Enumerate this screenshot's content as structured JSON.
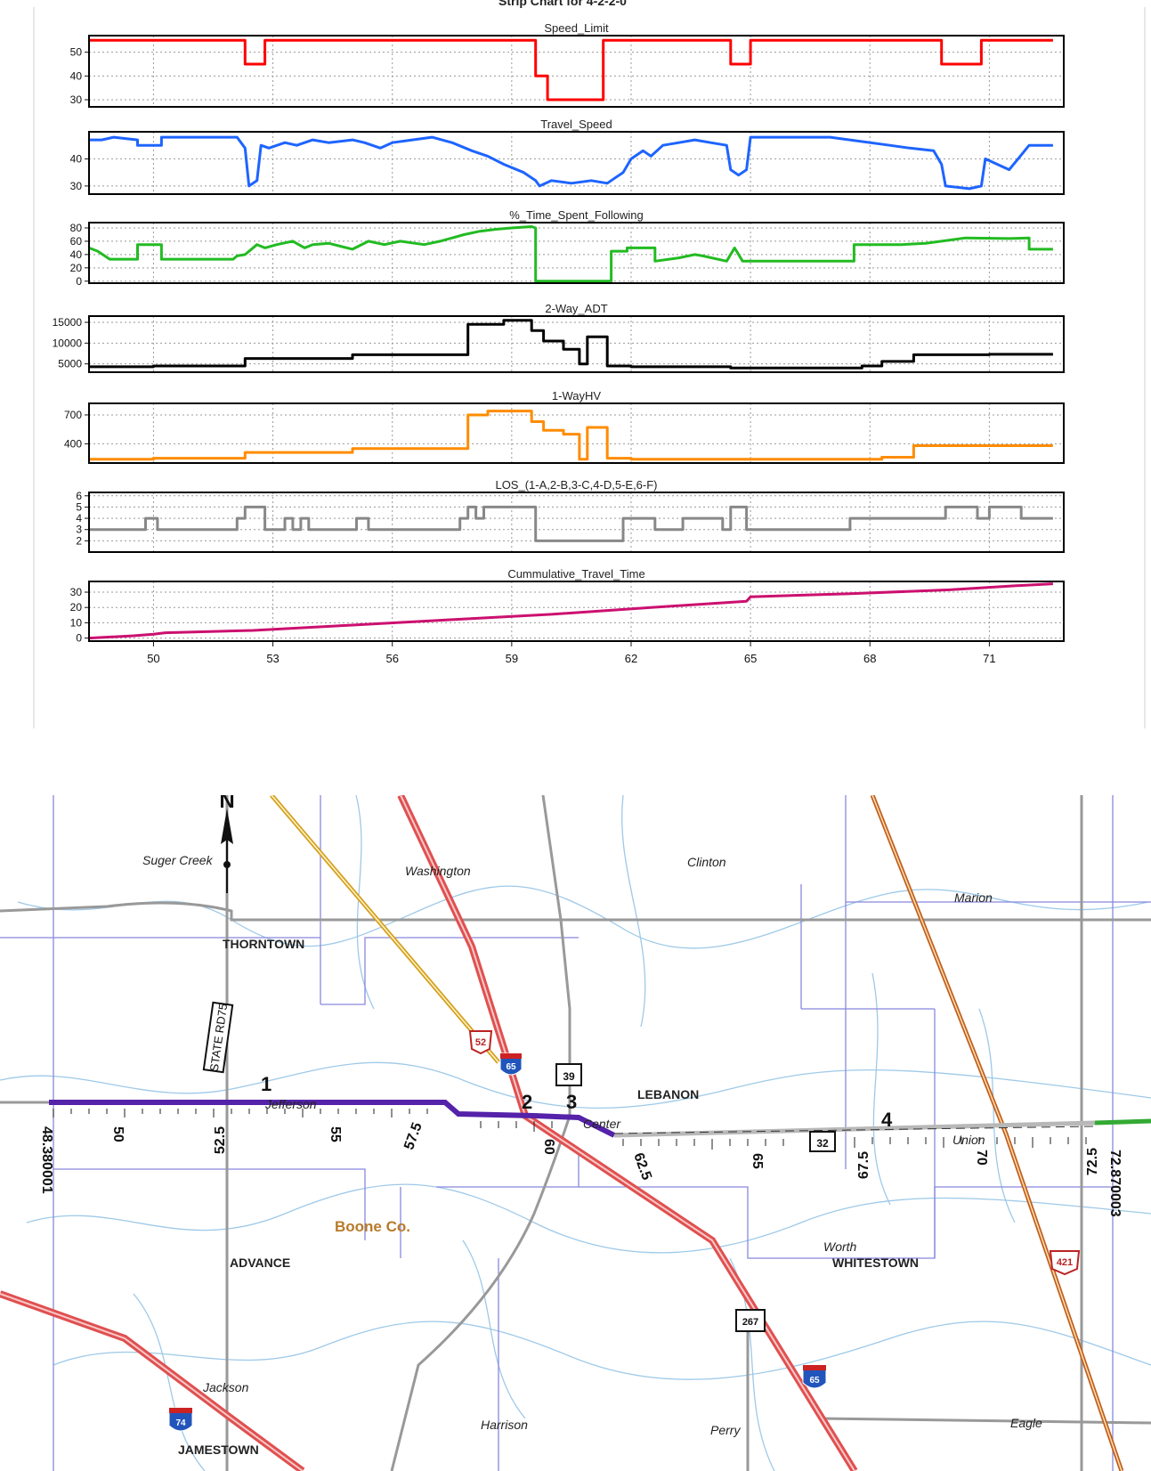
{
  "strip_chart": {
    "header_title": "Strip Chart for 4-2-2-0",
    "x_ticks": [
      50,
      53,
      56,
      59,
      62,
      65,
      68,
      71
    ]
  },
  "chart_data": [
    {
      "type": "line",
      "title": "Speed_Limit",
      "xlim": [
        48.38,
        72.87
      ],
      "ylim": [
        27,
        57
      ],
      "yticks": [
        30,
        40,
        50
      ],
      "color": "#ff0000",
      "x": [
        48.38,
        52.3,
        52.3,
        52.8,
        52.8,
        59.6,
        59.6,
        59.9,
        59.9,
        61.3,
        61.3,
        64.5,
        64.5,
        65.0,
        65.0,
        69.8,
        69.8,
        70.8,
        70.8,
        72.6
      ],
      "y": [
        55,
        55,
        45,
        45,
        55,
        55,
        40,
        40,
        30,
        30,
        55,
        55,
        45,
        45,
        55,
        55,
        45,
        45,
        55,
        55
      ]
    },
    {
      "type": "line",
      "title": "Travel_Speed",
      "xlim": [
        48.38,
        72.87
      ],
      "ylim": [
        27,
        50
      ],
      "yticks": [
        30,
        40
      ],
      "color": "#1e64ff",
      "x": [
        48.38,
        48.7,
        49.0,
        49.6,
        49.6,
        50.2,
        50.2,
        52.1,
        52.3,
        52.4,
        52.6,
        52.7,
        52.9,
        53.3,
        53.6,
        54.0,
        54.4,
        55.0,
        55.3,
        55.7,
        56.0,
        56.5,
        57.0,
        57.5,
        58.0,
        58.4,
        58.8,
        59.3,
        59.6,
        59.7,
        60.0,
        60.5,
        61.0,
        61.4,
        61.6,
        61.8,
        62.0,
        62.3,
        62.5,
        62.8,
        63.2,
        63.6,
        64.0,
        64.4,
        64.5,
        64.7,
        64.9,
        65.0,
        67.0,
        68.5,
        69.0,
        69.6,
        69.8,
        69.9,
        70.5,
        70.8,
        70.9,
        71.2,
        71.5,
        72.0,
        72.6
      ],
      "y": [
        47,
        47,
        48,
        47,
        45,
        45,
        48,
        48,
        44,
        30,
        32,
        45,
        44,
        46,
        45,
        47,
        46,
        47,
        46,
        44,
        46,
        47,
        48,
        46,
        43,
        41,
        38,
        35,
        32,
        30,
        32,
        31,
        32,
        31,
        33,
        35,
        40,
        43,
        41,
        45,
        46,
        47,
        46,
        45,
        36,
        34,
        36,
        48,
        48,
        45,
        44,
        43,
        38,
        30,
        29,
        30,
        40,
        38,
        36,
        45,
        45
      ]
    },
    {
      "type": "line",
      "title": "%_Time_Spent_Following",
      "xlim": [
        48.38,
        72.87
      ],
      "ylim": [
        -3,
        88
      ],
      "yticks": [
        0,
        20,
        40,
        60,
        80
      ],
      "color": "#22bb22",
      "x": [
        48.38,
        48.6,
        48.9,
        49.6,
        49.6,
        50.2,
        50.2,
        52.0,
        52.1,
        52.3,
        52.6,
        52.8,
        53.1,
        53.5,
        53.8,
        54.0,
        54.4,
        55.0,
        55.4,
        55.8,
        56.2,
        56.8,
        57.2,
        57.8,
        58.2,
        58.6,
        59.0,
        59.5,
        59.6,
        59.6,
        61.5,
        61.5,
        61.9,
        61.9,
        62.6,
        62.6,
        63.2,
        63.6,
        63.8,
        64.4,
        64.6,
        64.8,
        65.0,
        67.6,
        67.6,
        68.8,
        69.4,
        69.8,
        70.4,
        71.5,
        72.0,
        72.0,
        72.6
      ],
      "y": [
        50,
        45,
        33,
        33,
        55,
        55,
        33,
        33,
        38,
        40,
        55,
        50,
        55,
        60,
        50,
        55,
        57,
        48,
        60,
        55,
        60,
        55,
        60,
        70,
        75,
        78,
        80,
        82,
        80,
        0,
        0,
        45,
        45,
        50,
        50,
        30,
        35,
        40,
        38,
        30,
        50,
        30,
        30,
        30,
        55,
        55,
        57,
        60,
        65,
        64,
        65,
        48,
        48
      ]
    },
    {
      "type": "line",
      "title": "2-Way_ADT",
      "xlim": [
        48.38,
        72.87
      ],
      "ylim": [
        3000,
        16500
      ],
      "yticks": [
        5000,
        10000,
        15000
      ],
      "color": "#000000",
      "x": [
        48.38,
        50.0,
        50.0,
        52.3,
        52.3,
        55.0,
        55.0,
        57.9,
        57.9,
        58.8,
        58.8,
        59.5,
        59.5,
        59.8,
        59.8,
        60.3,
        60.3,
        60.7,
        60.7,
        60.9,
        60.9,
        61.4,
        61.4,
        62.0,
        62.0,
        64.5,
        64.5,
        67.8,
        67.8,
        68.3,
        68.3,
        69.1,
        69.1,
        71.0,
        71.0,
        72.6
      ],
      "y": [
        4300,
        4300,
        4500,
        4500,
        6300,
        6300,
        7200,
        7200,
        14500,
        14500,
        15500,
        15500,
        13000,
        13000,
        10500,
        10500,
        8500,
        8500,
        5000,
        5000,
        11500,
        11500,
        4500,
        4500,
        4300,
        4300,
        4000,
        4000,
        4500,
        4500,
        5600,
        5600,
        7200,
        7200,
        7300,
        7300
      ]
    },
    {
      "type": "line",
      "title": "1-WayHV",
      "xlim": [
        48.38,
        72.87
      ],
      "ylim": [
        200,
        820
      ],
      "yticks": [
        400,
        700
      ],
      "color": "#ff8c00",
      "x": [
        48.38,
        50.0,
        50.0,
        52.3,
        52.3,
        55.0,
        55.0,
        57.9,
        57.9,
        58.4,
        58.4,
        59.5,
        59.5,
        59.8,
        59.8,
        60.3,
        60.3,
        60.7,
        60.7,
        60.9,
        60.9,
        61.4,
        61.4,
        62.0,
        62.0,
        67.8,
        67.8,
        68.3,
        68.3,
        69.1,
        69.1,
        72.6
      ],
      "y": [
        240,
        240,
        250,
        250,
        310,
        310,
        350,
        350,
        700,
        700,
        740,
        740,
        630,
        630,
        540,
        540,
        500,
        500,
        240,
        240,
        570,
        570,
        250,
        250,
        240,
        240,
        240,
        240,
        260,
        260,
        380,
        380
      ]
    },
    {
      "type": "line",
      "title": "LOS_(1-A,2-B,3-C,4-D,5-E,6-F)",
      "xlim": [
        48.38,
        72.87
      ],
      "ylim": [
        1,
        6.3
      ],
      "yticks": [
        2,
        3,
        4,
        5,
        6
      ],
      "color": "#888888",
      "x": [
        48.38,
        49.8,
        49.8,
        50.1,
        50.1,
        52.1,
        52.1,
        52.3,
        52.3,
        52.8,
        52.8,
        53.3,
        53.3,
        53.5,
        53.5,
        53.7,
        53.7,
        53.9,
        53.9,
        55.1,
        55.1,
        55.4,
        55.4,
        57.7,
        57.7,
        57.9,
        57.9,
        58.1,
        58.1,
        58.3,
        58.3,
        59.6,
        59.6,
        61.0,
        61.0,
        61.8,
        61.8,
        62.6,
        62.6,
        63.3,
        63.3,
        64.3,
        64.3,
        64.5,
        64.5,
        64.9,
        64.9,
        67.5,
        67.5,
        69.9,
        69.9,
        70.7,
        70.7,
        71.0,
        71.0,
        71.8,
        71.8,
        72.6
      ],
      "y": [
        3,
        3,
        4,
        4,
        3,
        3,
        4,
        4,
        5,
        5,
        3,
        3,
        4,
        4,
        3,
        3,
        4,
        4,
        3,
        3,
        4,
        4,
        3,
        3,
        4,
        4,
        5,
        5,
        4,
        4,
        5,
        5,
        2,
        2,
        2,
        2,
        4,
        4,
        3,
        3,
        4,
        4,
        3,
        3,
        5,
        5,
        3,
        3,
        4,
        4,
        5,
        5,
        4,
        4,
        5,
        5,
        4,
        4
      ]
    },
    {
      "type": "line",
      "title": "Cummulative_Travel_Time",
      "xlim": [
        48.38,
        72.87
      ],
      "ylim": [
        -2,
        37
      ],
      "yticks": [
        0,
        10,
        20,
        30
      ],
      "color": "#cc1070",
      "x": [
        48.38,
        49.5,
        50.0,
        50.3,
        52.5,
        55.0,
        57.5,
        60.0,
        62.5,
        64.9,
        65.0,
        67.5,
        70.0,
        71.5,
        72.6
      ],
      "y": [
        0,
        1.5,
        2.5,
        3.5,
        5,
        8.5,
        12,
        15.5,
        20,
        24,
        27,
        29,
        31.5,
        34,
        35.5
      ]
    }
  ],
  "map": {
    "north_label": "N",
    "route_markers": [
      "1",
      "2",
      "3",
      "4"
    ],
    "mile_labels": [
      "48.380001",
      "50",
      "52.5",
      "55",
      "57.5",
      "60",
      "62.5",
      "65",
      "67.5",
      "70",
      "72.5",
      "72.870003"
    ],
    "place_labels": {
      "suger_creek": "Suger Creek",
      "washington": "Washington",
      "clinton": "Clinton",
      "marion": "Marion",
      "thorntown": "THORNTOWN",
      "lebanon": "LEBANON",
      "jefferson": "Jefferson",
      "center": "Center",
      "union": "Union",
      "boone_co": "Boone Co.",
      "advance": "ADVANCE",
      "worth": "Worth",
      "whitestown": "WHITESTOWN",
      "jackson": "Jackson",
      "harrison": "Harrison",
      "perry": "Perry",
      "eagle": "Eagle",
      "jamestown": "JAMESTOWN"
    },
    "road_label": "STATE RD75",
    "shields": {
      "us52": "52",
      "i65_north": "65",
      "sr39": "39",
      "sr32": "32",
      "sr267": "267",
      "us421": "421",
      "i65_south": "65",
      "i74": "74"
    },
    "colors": {
      "route_purple": "#5522aa",
      "route_gray": "#b8b8b8",
      "route_green": "#33aa33",
      "interstate": "#e05050",
      "county_line": "#8888dd",
      "highway_gray": "#999999"
    }
  }
}
